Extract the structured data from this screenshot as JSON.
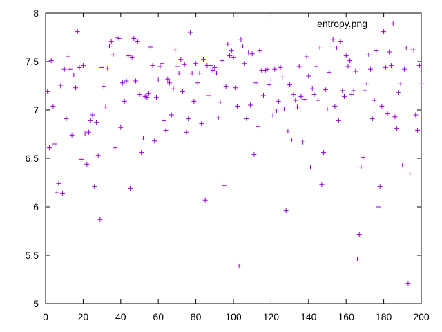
{
  "chart_data": {
    "type": "scatter",
    "series": [
      {
        "name": "entropy.png",
        "color": "#9400d3",
        "x": [
          1,
          2,
          3,
          4,
          5,
          6,
          7,
          8,
          9,
          10,
          11,
          12,
          13,
          14,
          15,
          16,
          17,
          18,
          19,
          20,
          21,
          22,
          23,
          24,
          25,
          26,
          27,
          28,
          29,
          30,
          31,
          32,
          33,
          34,
          35,
          36,
          37,
          38,
          39,
          40,
          41,
          42,
          43,
          44,
          45,
          46,
          47,
          48,
          49,
          50,
          51,
          52,
          53,
          54,
          55,
          56,
          57,
          58,
          59,
          60,
          61,
          62,
          63,
          64,
          65,
          66,
          67,
          68,
          69,
          70,
          71,
          72,
          73,
          74,
          75,
          76,
          77,
          78,
          79,
          80,
          81,
          82,
          83,
          84,
          85,
          86,
          87,
          88,
          89,
          90,
          91,
          92,
          93,
          94,
          95,
          96,
          97,
          98,
          99,
          100,
          101,
          102,
          103,
          104,
          105,
          106,
          107,
          108,
          109,
          110,
          111,
          112,
          113,
          114,
          115,
          116,
          117,
          118,
          119,
          120,
          121,
          122,
          123,
          124,
          125,
          126,
          127,
          128,
          129,
          130,
          131,
          132,
          133,
          134,
          135,
          136,
          137,
          138,
          139,
          140,
          141,
          142,
          143,
          144,
          145,
          146,
          147,
          148,
          149,
          150,
          151,
          152,
          153,
          154,
          155,
          156,
          157,
          158,
          159,
          160,
          161,
          162,
          163,
          164,
          165,
          166,
          167,
          168,
          169,
          170,
          171,
          172,
          173,
          174,
          175,
          176,
          177,
          178,
          179,
          180,
          181,
          182,
          183,
          184,
          185,
          186,
          187,
          188,
          189,
          190,
          191,
          192,
          193,
          194,
          195,
          196,
          197,
          198,
          199,
          200
        ],
        "values": [
          7.19,
          6.61,
          7.51,
          7.04,
          6.65,
          6.15,
          6.24,
          7.25,
          6.14,
          7.42,
          6.91,
          7.55,
          7.42,
          6.74,
          7.36,
          7.23,
          7.81,
          7.44,
          6.49,
          7.46,
          6.76,
          6.44,
          6.77,
          6.89,
          6.95,
          6.21,
          6.87,
          6.53,
          5.87,
          7.44,
          7.24,
          7.03,
          7.43,
          7.66,
          7.71,
          7.57,
          6.61,
          7.75,
          7.74,
          6.82,
          7.28,
          7.09,
          7.3,
          7.56,
          6.19,
          7.54,
          7.74,
          7.3,
          7.71,
          7.16,
          6.56,
          6.71,
          7.14,
          7.13,
          7.17,
          7.65,
          7.46,
          6.68,
          7.13,
          7.31,
          7.45,
          7.48,
          6.89,
          6.79,
          7.32,
          7.28,
          6.95,
          7.22,
          7.62,
          7.45,
          7.38,
          7.52,
          7.19,
          7.47,
          6.77,
          6.91,
          7.8,
          7.38,
          7.09,
          7.48,
          7.28,
          7.38,
          6.86,
          7.52,
          6.07,
          7.46,
          7.15,
          7.46,
          7.41,
          7.44,
          7.38,
          6.92,
          7.08,
          7.51,
          6.22,
          7.24,
          7.68,
          7.56,
          7.61,
          7.54,
          7.23,
          7.04,
          5.39,
          7.73,
          7.66,
          7.48,
          6.91,
          7.59,
          7.05,
          7.58,
          6.54,
          7.28,
          6.83,
          7.61,
          7.41,
          7.15,
          7.41,
          7.42,
          7.26,
          7.31,
          6.94,
          7.42,
          6.99,
          7.09,
          7.44,
          7.34,
          7.01,
          5.96,
          6.78,
          7.26,
          6.69,
          7.16,
          7.1,
          7.03,
          7.45,
          7.14,
          6.67,
          7.11,
          7.55,
          7.35,
          6.41,
          7.22,
          7.16,
          7.45,
          7.1,
          7.64,
          6.23,
          6.56,
          7.21,
          7.01,
          7.39,
          7.66,
          7.73,
          7.04,
          7.64,
          6.89,
          7.71,
          7.2,
          7.14,
          7.56,
          7.45,
          7.51,
          7.16,
          7.2,
          7.4,
          5.46,
          5.71,
          6.41,
          6.51,
          7.2,
          7.27,
          7.57,
          7.42,
          6.91,
          7.1,
          7.61,
          6.0,
          6.21,
          7.04,
          7.81,
          7.44,
          6.96,
          7.6,
          7.46,
          7.89,
          6.93,
          6.81,
          7.18,
          7.27,
          6.43,
          7.42,
          7.64,
          5.21,
          6.34,
          7.62,
          7.62,
          6.95,
          6.79,
          7.46,
          7.27
        ]
      }
    ],
    "xlim": [
      0,
      200
    ],
    "xticks": [
      0,
      20,
      40,
      60,
      80,
      100,
      120,
      140,
      160,
      180,
      200
    ],
    "ylim": [
      5,
      8
    ],
    "yticks": [
      5,
      5.5,
      6,
      6.5,
      7,
      7.5,
      8
    ],
    "grid": false,
    "legend": "top-right"
  }
}
